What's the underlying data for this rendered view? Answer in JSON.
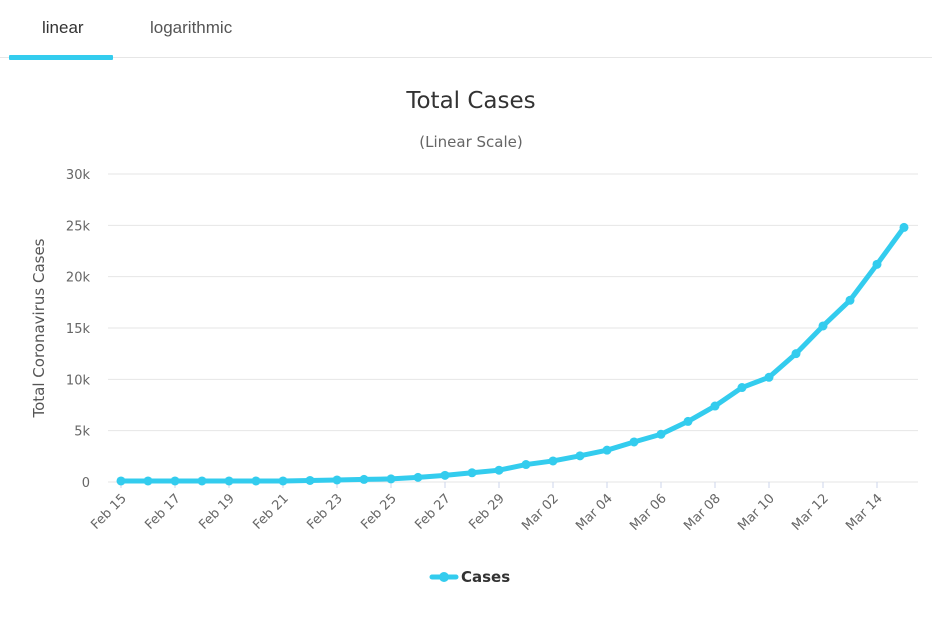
{
  "tabs": [
    {
      "label": "linear",
      "active": true
    },
    {
      "label": "logarithmic",
      "active": false
    }
  ],
  "colors": {
    "series": "#33ccee",
    "tab_underline": "#33ccee",
    "grid": "#e6e6e6"
  },
  "chart_data": {
    "type": "line",
    "title": "Total Cases",
    "subtitle": "(Linear Scale)",
    "ylabel": "Total Coronavirus Cases",
    "xlabel": "",
    "ylim": [
      0,
      30000
    ],
    "y_ticks": [
      0,
      5000,
      10000,
      15000,
      20000,
      25000,
      30000
    ],
    "y_tick_labels": [
      "0",
      "5k",
      "10k",
      "15k",
      "20k",
      "25k",
      "30k"
    ],
    "x_tick_labels": [
      "Feb 15",
      "Feb 17",
      "Feb 19",
      "Feb 21",
      "Feb 23",
      "Feb 25",
      "Feb 27",
      "Feb 29",
      "Mar 02",
      "Mar 04",
      "Mar 06",
      "Mar 08",
      "Mar 10",
      "Mar 12",
      "Mar 14"
    ],
    "grid": true,
    "legend": "bottom-center",
    "categories": [
      "Feb 15",
      "Feb 16",
      "Feb 17",
      "Feb 18",
      "Feb 19",
      "Feb 20",
      "Feb 21",
      "Feb 22",
      "Feb 23",
      "Feb 24",
      "Feb 25",
      "Feb 26",
      "Feb 27",
      "Feb 28",
      "Feb 29",
      "Mar 01",
      "Mar 02",
      "Mar 03",
      "Mar 04",
      "Mar 05",
      "Mar 06",
      "Mar 07",
      "Mar 08",
      "Mar 09",
      "Mar 10",
      "Mar 11",
      "Mar 12",
      "Mar 13",
      "Mar 14",
      "Mar 15"
    ],
    "series": [
      {
        "name": "Cases",
        "color": "#33ccee",
        "values": [
          100,
          100,
          100,
          100,
          100,
          100,
          100,
          150,
          200,
          250,
          300,
          450,
          650,
          900,
          1150,
          1700,
          2050,
          2550,
          3100,
          3900,
          4650,
          5900,
          7400,
          9200,
          10200,
          12500,
          15200,
          17700,
          21200,
          24800
        ]
      }
    ]
  }
}
